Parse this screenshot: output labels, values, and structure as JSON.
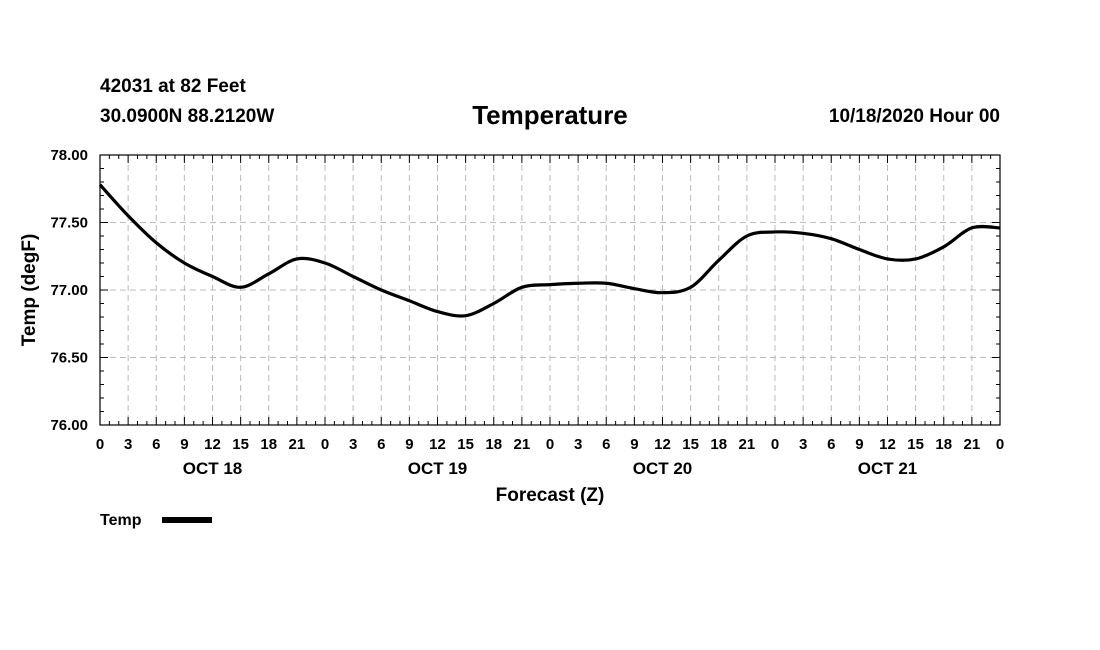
{
  "header": {
    "station": "42031 at 82 Feet",
    "coords": "30.0900N 88.2120W",
    "title": "Temperature",
    "run": "10/18/2020 Hour 00"
  },
  "chart_data": {
    "type": "line",
    "title": "Temperature",
    "xlabel": "Forecast (Z)",
    "ylabel": "Temp (degF)",
    "ylim": [
      76.0,
      78.0
    ],
    "yticks": [
      "76.00",
      "76.50",
      "77.00",
      "77.50",
      "78.00"
    ],
    "xlim": [
      0,
      96
    ],
    "xtick_step_hours": 3,
    "xtick_labels": [
      "0",
      "3",
      "6",
      "9",
      "12",
      "15",
      "18",
      "21",
      "0",
      "3",
      "6",
      "9",
      "12",
      "15",
      "18",
      "21",
      "0",
      "3",
      "6",
      "9",
      "12",
      "15",
      "18",
      "21",
      "0",
      "3",
      "6",
      "9",
      "12",
      "15",
      "18",
      "21",
      "0"
    ],
    "day_labels": [
      {
        "hour": 12,
        "label": "OCT 18"
      },
      {
        "hour": 36,
        "label": "OCT 19"
      },
      {
        "hour": 60,
        "label": "OCT 20"
      },
      {
        "hour": 84,
        "label": "OCT 21"
      }
    ],
    "grid": true,
    "legend": "bottom-left",
    "series": [
      {
        "name": "Temp",
        "color": "#000000",
        "x": [
          0,
          3,
          6,
          9,
          12,
          15,
          18,
          21,
          24,
          27,
          30,
          33,
          36,
          39,
          42,
          45,
          48,
          51,
          54,
          57,
          60,
          63,
          66,
          69,
          72,
          75,
          78,
          81,
          84,
          87,
          90,
          93,
          96
        ],
        "values": [
          77.78,
          77.55,
          77.35,
          77.2,
          77.1,
          77.02,
          77.12,
          77.23,
          77.2,
          77.1,
          77.0,
          76.92,
          76.84,
          76.81,
          76.9,
          77.02,
          77.04,
          77.05,
          77.05,
          77.01,
          76.98,
          77.02,
          77.22,
          77.4,
          77.43,
          77.42,
          77.38,
          77.3,
          77.23,
          77.23,
          77.32,
          77.46,
          77.46
        ]
      }
    ]
  },
  "legend": {
    "label": "Temp"
  }
}
